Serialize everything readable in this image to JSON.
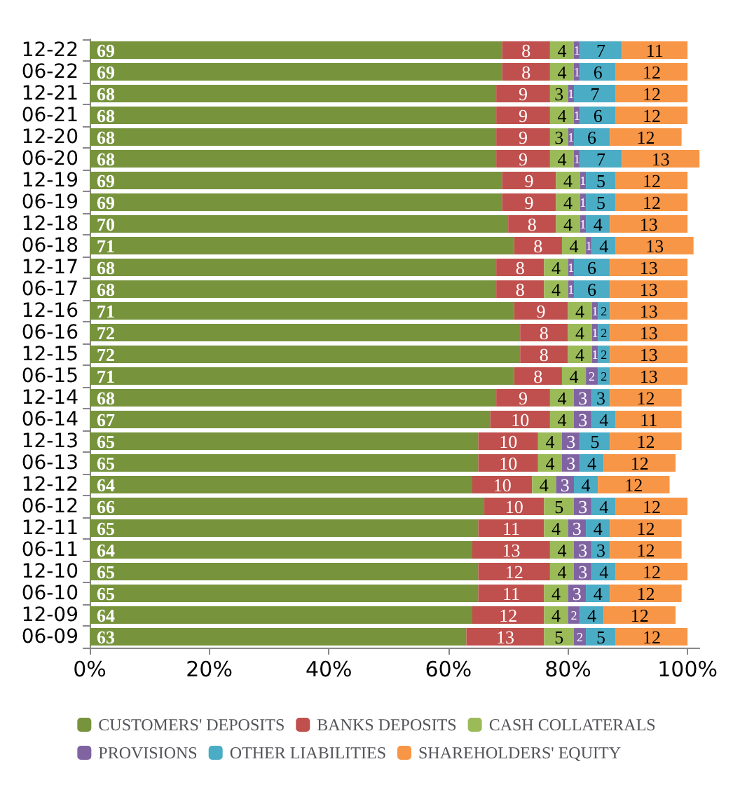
{
  "chart_data": {
    "type": "bar",
    "orientation": "horizontal",
    "stacked": true,
    "data_labels": true,
    "legend": "bottom",
    "grid": false,
    "categories": [
      "12-22",
      "06-22",
      "12-21",
      "06-21",
      "12-20",
      "06-20",
      "12-19",
      "06-19",
      "12-18",
      "06-18",
      "12-17",
      "06-17",
      "12-16",
      "06-16",
      "12-15",
      "06-15",
      "12-14",
      "06-14",
      "12-13",
      "06-13",
      "12-12",
      "06-12",
      "12-11",
      "06-11",
      "12-10",
      "06-10",
      "12-09",
      "06-09"
    ],
    "xlim": [
      0,
      102
    ],
    "xticks": [
      {
        "value": 0,
        "label": "0%"
      },
      {
        "value": 20,
        "label": "20%"
      },
      {
        "value": 40,
        "label": "40%"
      },
      {
        "value": 60,
        "label": "60%"
      },
      {
        "value": 80,
        "label": "80%"
      },
      {
        "value": 100,
        "label": "100%"
      }
    ],
    "series": [
      {
        "name": "CUSTOMERS' DEPOSITS",
        "color": "#77933c",
        "values": [
          69,
          69,
          68,
          68,
          68,
          68,
          69,
          69,
          70,
          71,
          68,
          68,
          71,
          72,
          72,
          71,
          68,
          67,
          65,
          65,
          64,
          66,
          65,
          64,
          65,
          65,
          64,
          63
        ]
      },
      {
        "name": "BANKS DEPOSITS",
        "color": "#c0504d",
        "values": [
          8,
          8,
          9,
          9,
          9,
          9,
          9,
          9,
          8,
          8,
          8,
          8,
          9,
          8,
          8,
          8,
          9,
          10,
          10,
          10,
          10,
          10,
          11,
          13,
          12,
          11,
          12,
          13
        ]
      },
      {
        "name": "CASH COLLATERALS",
        "color": "#9bbb59",
        "values": [
          4,
          4,
          3,
          4,
          3,
          4,
          4,
          4,
          4,
          4,
          4,
          4,
          4,
          4,
          4,
          4,
          4,
          4,
          4,
          4,
          4,
          5,
          4,
          4,
          4,
          4,
          4,
          5
        ]
      },
      {
        "name": "PROVISIONS",
        "color": "#8064a2",
        "values": [
          1,
          1,
          1,
          1,
          1,
          1,
          1,
          1,
          1,
          1,
          1,
          1,
          1,
          1,
          1,
          2,
          3,
          3,
          3,
          3,
          3,
          3,
          3,
          3,
          3,
          3,
          2,
          2
        ]
      },
      {
        "name": "OTHER LIABILITIES",
        "color": "#4bacc6",
        "values": [
          7,
          6,
          7,
          6,
          6,
          7,
          5,
          5,
          4,
          4,
          6,
          6,
          2,
          2,
          2,
          2,
          3,
          4,
          5,
          4,
          4,
          4,
          4,
          3,
          4,
          4,
          4,
          5
        ]
      },
      {
        "name": "SHAREHOLDERS' EQUITY",
        "color": "#f79646",
        "values": [
          11,
          12,
          12,
          12,
          12,
          13,
          12,
          12,
          13,
          13,
          13,
          13,
          13,
          13,
          13,
          13,
          12,
          11,
          12,
          12,
          12,
          12,
          12,
          12,
          12,
          12,
          12,
          12
        ]
      }
    ]
  }
}
